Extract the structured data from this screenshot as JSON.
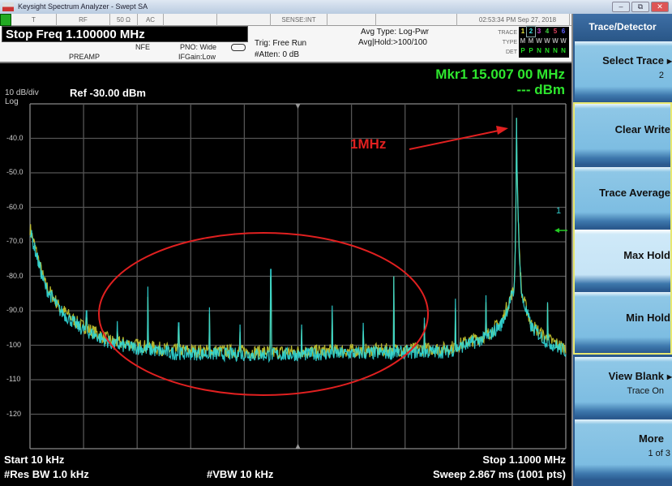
{
  "window": {
    "title": "Keysight Spectrum Analyzer - Swept SA",
    "buttons": [
      "–",
      "⧉",
      "✕"
    ]
  },
  "status_row": {
    "cells": [
      "T",
      "RF",
      "50 Ω",
      "AC",
      "",
      "",
      "SENSE:INT",
      ""
    ],
    "datetime": "02:53:34 PM Sep 27, 2018"
  },
  "active_function": "Stop Freq 1.100000 MHz",
  "settings": {
    "preamp": "PREAMP",
    "nfe": "NFE",
    "pno": "PNO: Wide",
    "ifgain": "IFGain:Low",
    "trig": "Trig: Free Run",
    "atten": "#Atten: 0 dB",
    "avg_type": "Avg Type: Log-Pwr",
    "avg_hold": "Avg|Hold:>100/100"
  },
  "trace_table": {
    "labels": [
      "TRACE",
      "TYPE",
      "DET"
    ],
    "traces": [
      "1",
      "2",
      "3",
      "4",
      "5",
      "6"
    ],
    "trace_colors": [
      "#e8e840",
      "#40e0e0",
      "#d040d0",
      "#40d040",
      "#e04060",
      "#6060ff"
    ],
    "types": [
      "M",
      "M",
      "W",
      "W",
      "W",
      "W"
    ],
    "dets": [
      "P",
      "P",
      "N",
      "N",
      "N",
      "N"
    ],
    "selected": "2"
  },
  "marker": {
    "line1": "Mkr1 15.007 00 MHz",
    "line2": "--- dBm",
    "label": "1"
  },
  "scale": {
    "per_div": "10 dB/div",
    "ref": "Ref -30.00 dBm",
    "mode": "Log"
  },
  "footer": {
    "start": "Start 10 kHz",
    "stop": "Stop 1.1000 MHz",
    "rbw": "#Res BW 1.0 kHz",
    "vbw": "#VBW 10 kHz",
    "sweep": "Sweep  2.867 ms (1001 pts)"
  },
  "annotation": {
    "text": "1MHz",
    "color": "#e02020"
  },
  "softkeys": {
    "title": "Trace/Detector",
    "items": [
      {
        "label": "Select Trace",
        "sub": "2",
        "submenu": true
      },
      {
        "label": "Clear Write"
      },
      {
        "label": "Trace Average"
      },
      {
        "label": "Max Hold",
        "selected": true
      },
      {
        "label": "Min Hold"
      },
      {
        "label": "View Blank",
        "sub": "Trace On",
        "submenu": true
      },
      {
        "label": "More",
        "sub": "1 of 3"
      }
    ]
  },
  "chart_data": {
    "type": "line",
    "x_unit": "kHz",
    "y_unit": "dBm",
    "xlim": [
      10,
      1100
    ],
    "ylim": [
      -130,
      -30
    ],
    "yticks": [
      "-40.0",
      "-50.0",
      "-60.0",
      "-70.0",
      "-80.0",
      "-90.0",
      "-100",
      "-110",
      "-120"
    ],
    "grid": true,
    "noise_floor": [
      [
        10,
        -66
      ],
      [
        40,
        -82
      ],
      [
        70,
        -89
      ],
      [
        110,
        -94
      ],
      [
        180,
        -99
      ],
      [
        300,
        -101.5
      ],
      [
        500,
        -102
      ],
      [
        700,
        -101.5
      ],
      [
        860,
        -101
      ],
      [
        900,
        -99
      ],
      [
        940,
        -97
      ],
      [
        970,
        -93
      ],
      [
        990,
        -85
      ],
      [
        1000,
        -34
      ],
      [
        1010,
        -85
      ],
      [
        1030,
        -94
      ],
      [
        1060,
        -98
      ],
      [
        1100,
        -101
      ]
    ],
    "spurs": [
      [
        125,
        -90
      ],
      [
        187.5,
        -93
      ],
      [
        250,
        -83
      ],
      [
        312.5,
        -93.5
      ],
      [
        375,
        -89
      ],
      [
        437.5,
        -94
      ],
      [
        500,
        -78
      ],
      [
        562.5,
        -94
      ],
      [
        625,
        -88.5
      ],
      [
        687.5,
        -93.5
      ],
      [
        750,
        -80
      ],
      [
        812.5,
        -92
      ],
      [
        875,
        -86.5
      ],
      [
        937.5,
        -85.5
      ],
      [
        1000,
        -34
      ],
      [
        1062.5,
        -87.5
      ]
    ],
    "series": [
      {
        "trace": "1",
        "color": "#c8c830"
      },
      {
        "trace": "2",
        "color": "#30d8d8"
      }
    ]
  }
}
